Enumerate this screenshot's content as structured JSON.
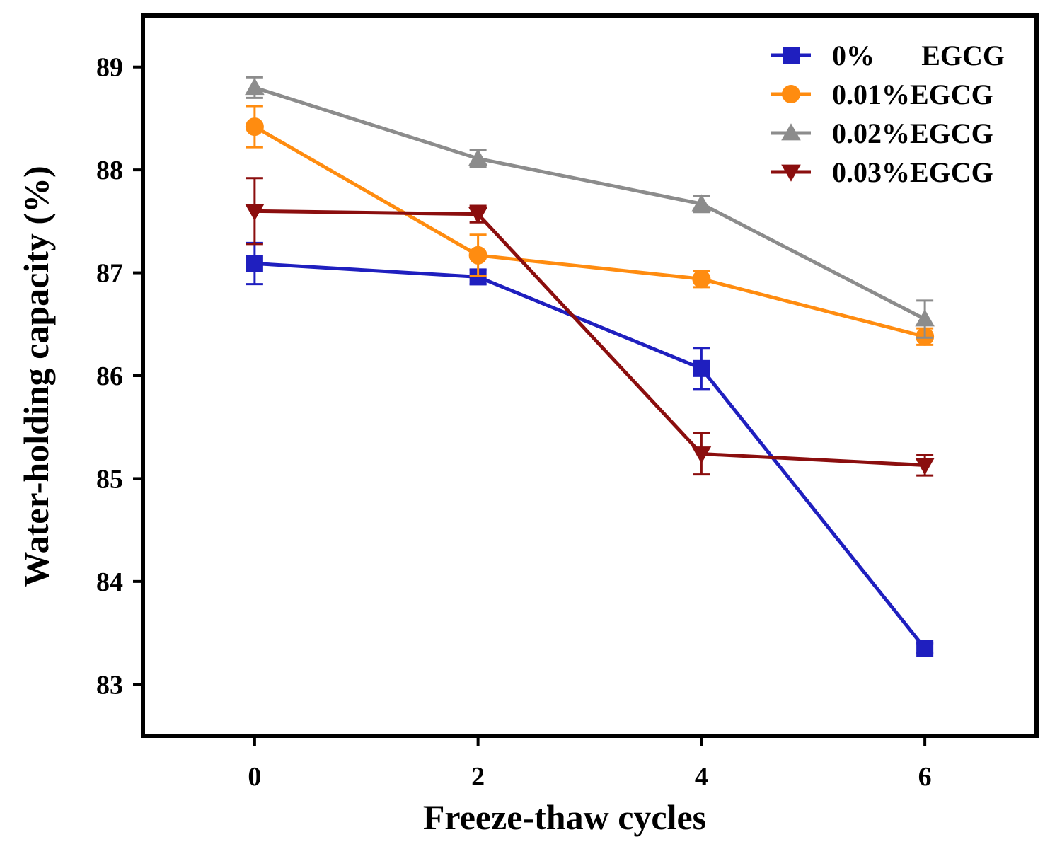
{
  "chart_data": {
    "type": "line",
    "xlabel": "Freeze-thaw cycles",
    "ylabel": "Water-holding capacity (%)",
    "x": [
      0,
      2,
      4,
      6
    ],
    "xlim": [
      -1,
      7
    ],
    "ylim": [
      82.5,
      89.5
    ],
    "xticks": [
      "0",
      "2",
      "4",
      "6"
    ],
    "yticks": [
      "83",
      "84",
      "85",
      "86",
      "87",
      "88",
      "89"
    ],
    "legend_position": "top-right",
    "grid": false,
    "series": [
      {
        "name": "0%",
        "name_suffix": "EGCG",
        "color": "#1f1fbf",
        "marker": "square",
        "values": [
          87.09,
          86.96,
          86.07,
          83.35
        ],
        "errors": [
          0.2,
          0.07,
          0.2,
          0.05
        ]
      },
      {
        "name": "0.01%EGCG",
        "color": "#ff8c10",
        "marker": "circle",
        "values": [
          88.42,
          87.17,
          86.94,
          86.38
        ],
        "errors": [
          0.2,
          0.2,
          0.08,
          0.08
        ]
      },
      {
        "name": "0.02%EGCG",
        "color": "#8c8c8c",
        "marker": "triangle-up",
        "values": [
          88.8,
          88.11,
          87.67,
          86.55
        ],
        "errors": [
          0.1,
          0.08,
          0.08,
          0.18
        ]
      },
      {
        "name": "0.03%EGCG",
        "color": "#8b0e0e",
        "marker": "triangle-down",
        "values": [
          87.6,
          87.57,
          85.24,
          85.13
        ],
        "errors": [
          0.32,
          0.08,
          0.2,
          0.1
        ]
      }
    ]
  }
}
